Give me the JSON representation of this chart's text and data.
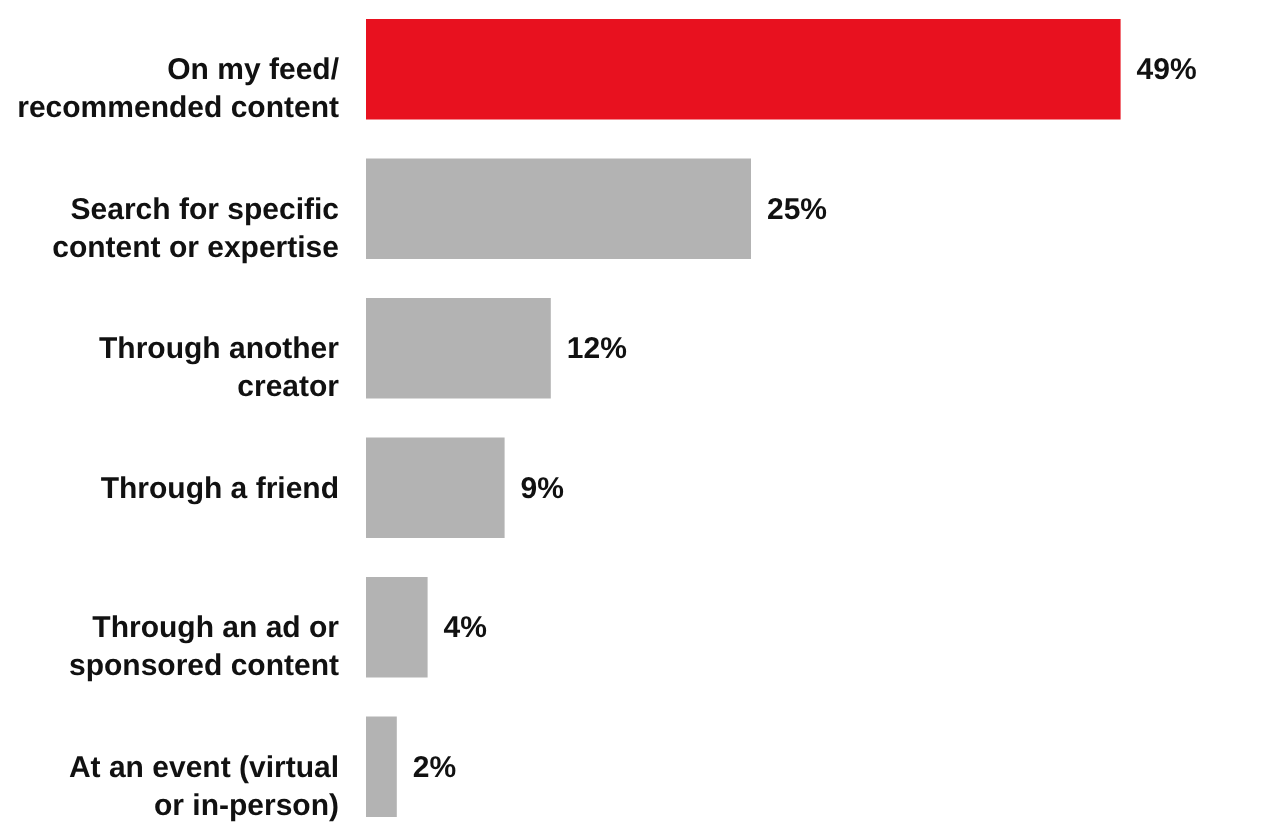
{
  "chart_data": {
    "type": "bar",
    "orientation": "horizontal",
    "categories": [
      "On my feed/ recommended content",
      "Search for specific content or expertise",
      "Through another creator",
      "Through a friend",
      "Through an ad or sponsored content",
      "At an event (virtual or in-person)"
    ],
    "values": [
      49,
      25,
      12,
      9,
      4,
      2
    ],
    "colors": [
      "#e8111f",
      "#b3b3b3",
      "#b3b3b3",
      "#b3b3b3",
      "#b3b3b3",
      "#b3b3b3"
    ],
    "value_labels": [
      "49%",
      "25%",
      "12%",
      "9%",
      "4%",
      "2%"
    ]
  }
}
